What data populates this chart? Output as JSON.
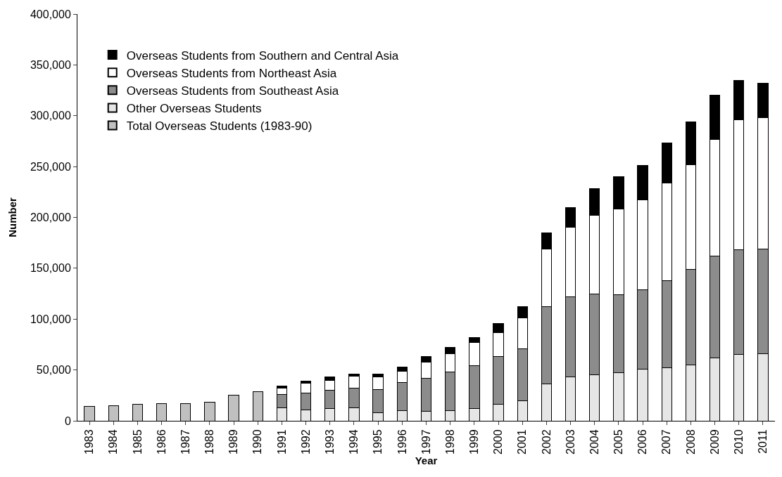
{
  "chart_data": {
    "type": "bar",
    "stacked": true,
    "xlabel": "Year",
    "ylabel": "Number",
    "categories": [
      "1983",
      "1984",
      "1985",
      "1986",
      "1987",
      "1988",
      "1989",
      "1990",
      "1991",
      "1992",
      "1993",
      "1994",
      "1995",
      "1996",
      "1997",
      "1998",
      "1999",
      "2000",
      "2001",
      "2002",
      "2003",
      "2004",
      "2005",
      "2006",
      "2007",
      "2008",
      "2009",
      "2010",
      "2011"
    ],
    "series": [
      {
        "name": "Total Overseas Students (1983-90)",
        "color": "#c0c0c0",
        "values": [
          14000,
          15000,
          16000,
          17000,
          17000,
          18000,
          25000,
          29000,
          null,
          null,
          null,
          null,
          null,
          null,
          null,
          null,
          null,
          null,
          null,
          null,
          null,
          null,
          null,
          null,
          null,
          null,
          null,
          null,
          null
        ]
      },
      {
        "name": "Other Overseas Students",
        "color": "#e6e6e6",
        "values": [
          null,
          null,
          null,
          null,
          null,
          null,
          null,
          null,
          13000,
          11000,
          12000,
          13000,
          8000,
          10000,
          9000,
          10000,
          12000,
          16000,
          20000,
          36000,
          43000,
          45000,
          47000,
          51000,
          52000,
          55000,
          62000,
          65000,
          66000
        ]
      },
      {
        "name": "Overseas Students from Southeast Asia",
        "color": "#8c8c8c",
        "values": [
          null,
          null,
          null,
          null,
          null,
          null,
          null,
          null,
          13000,
          16000,
          18000,
          19000,
          23000,
          28000,
          33000,
          38000,
          42000,
          47000,
          51000,
          76000,
          79000,
          80000,
          77000,
          78000,
          86000,
          94000,
          100000,
          103000,
          103000
        ]
      },
      {
        "name": "Overseas Students from Northeast Asia",
        "color": "#ffffff",
        "values": [
          null,
          null,
          null,
          null,
          null,
          null,
          null,
          null,
          6000,
          10000,
          10000,
          12000,
          12000,
          11000,
          16000,
          18000,
          23000,
          24000,
          30000,
          57000,
          68000,
          77000,
          84000,
          88000,
          96000,
          103000,
          115000,
          128000,
          129000
        ]
      },
      {
        "name": "Overseas Students from Southern and Central Asia",
        "color": "#000000",
        "values": [
          null,
          null,
          null,
          null,
          null,
          null,
          null,
          null,
          2000,
          2000,
          3000,
          2000,
          3000,
          4000,
          5000,
          6000,
          5000,
          9000,
          11000,
          16000,
          20000,
          26000,
          32000,
          34000,
          39000,
          42000,
          43000,
          39000,
          34000
        ]
      }
    ],
    "ylim": [
      0,
      400000
    ],
    "yticks": [
      {
        "value": 0,
        "label": "0"
      },
      {
        "value": 50000,
        "label": "50,000"
      },
      {
        "value": 100000,
        "label": "100,000"
      },
      {
        "value": 150000,
        "label": "150,000"
      },
      {
        "value": 200000,
        "label": "200,000"
      },
      {
        "value": 250000,
        "label": "250,000"
      },
      {
        "value": 300000,
        "label": "300,000"
      },
      {
        "value": 350000,
        "label": "350,000"
      },
      {
        "value": 400000,
        "label": "400,000"
      }
    ],
    "legend": "top left"
  }
}
